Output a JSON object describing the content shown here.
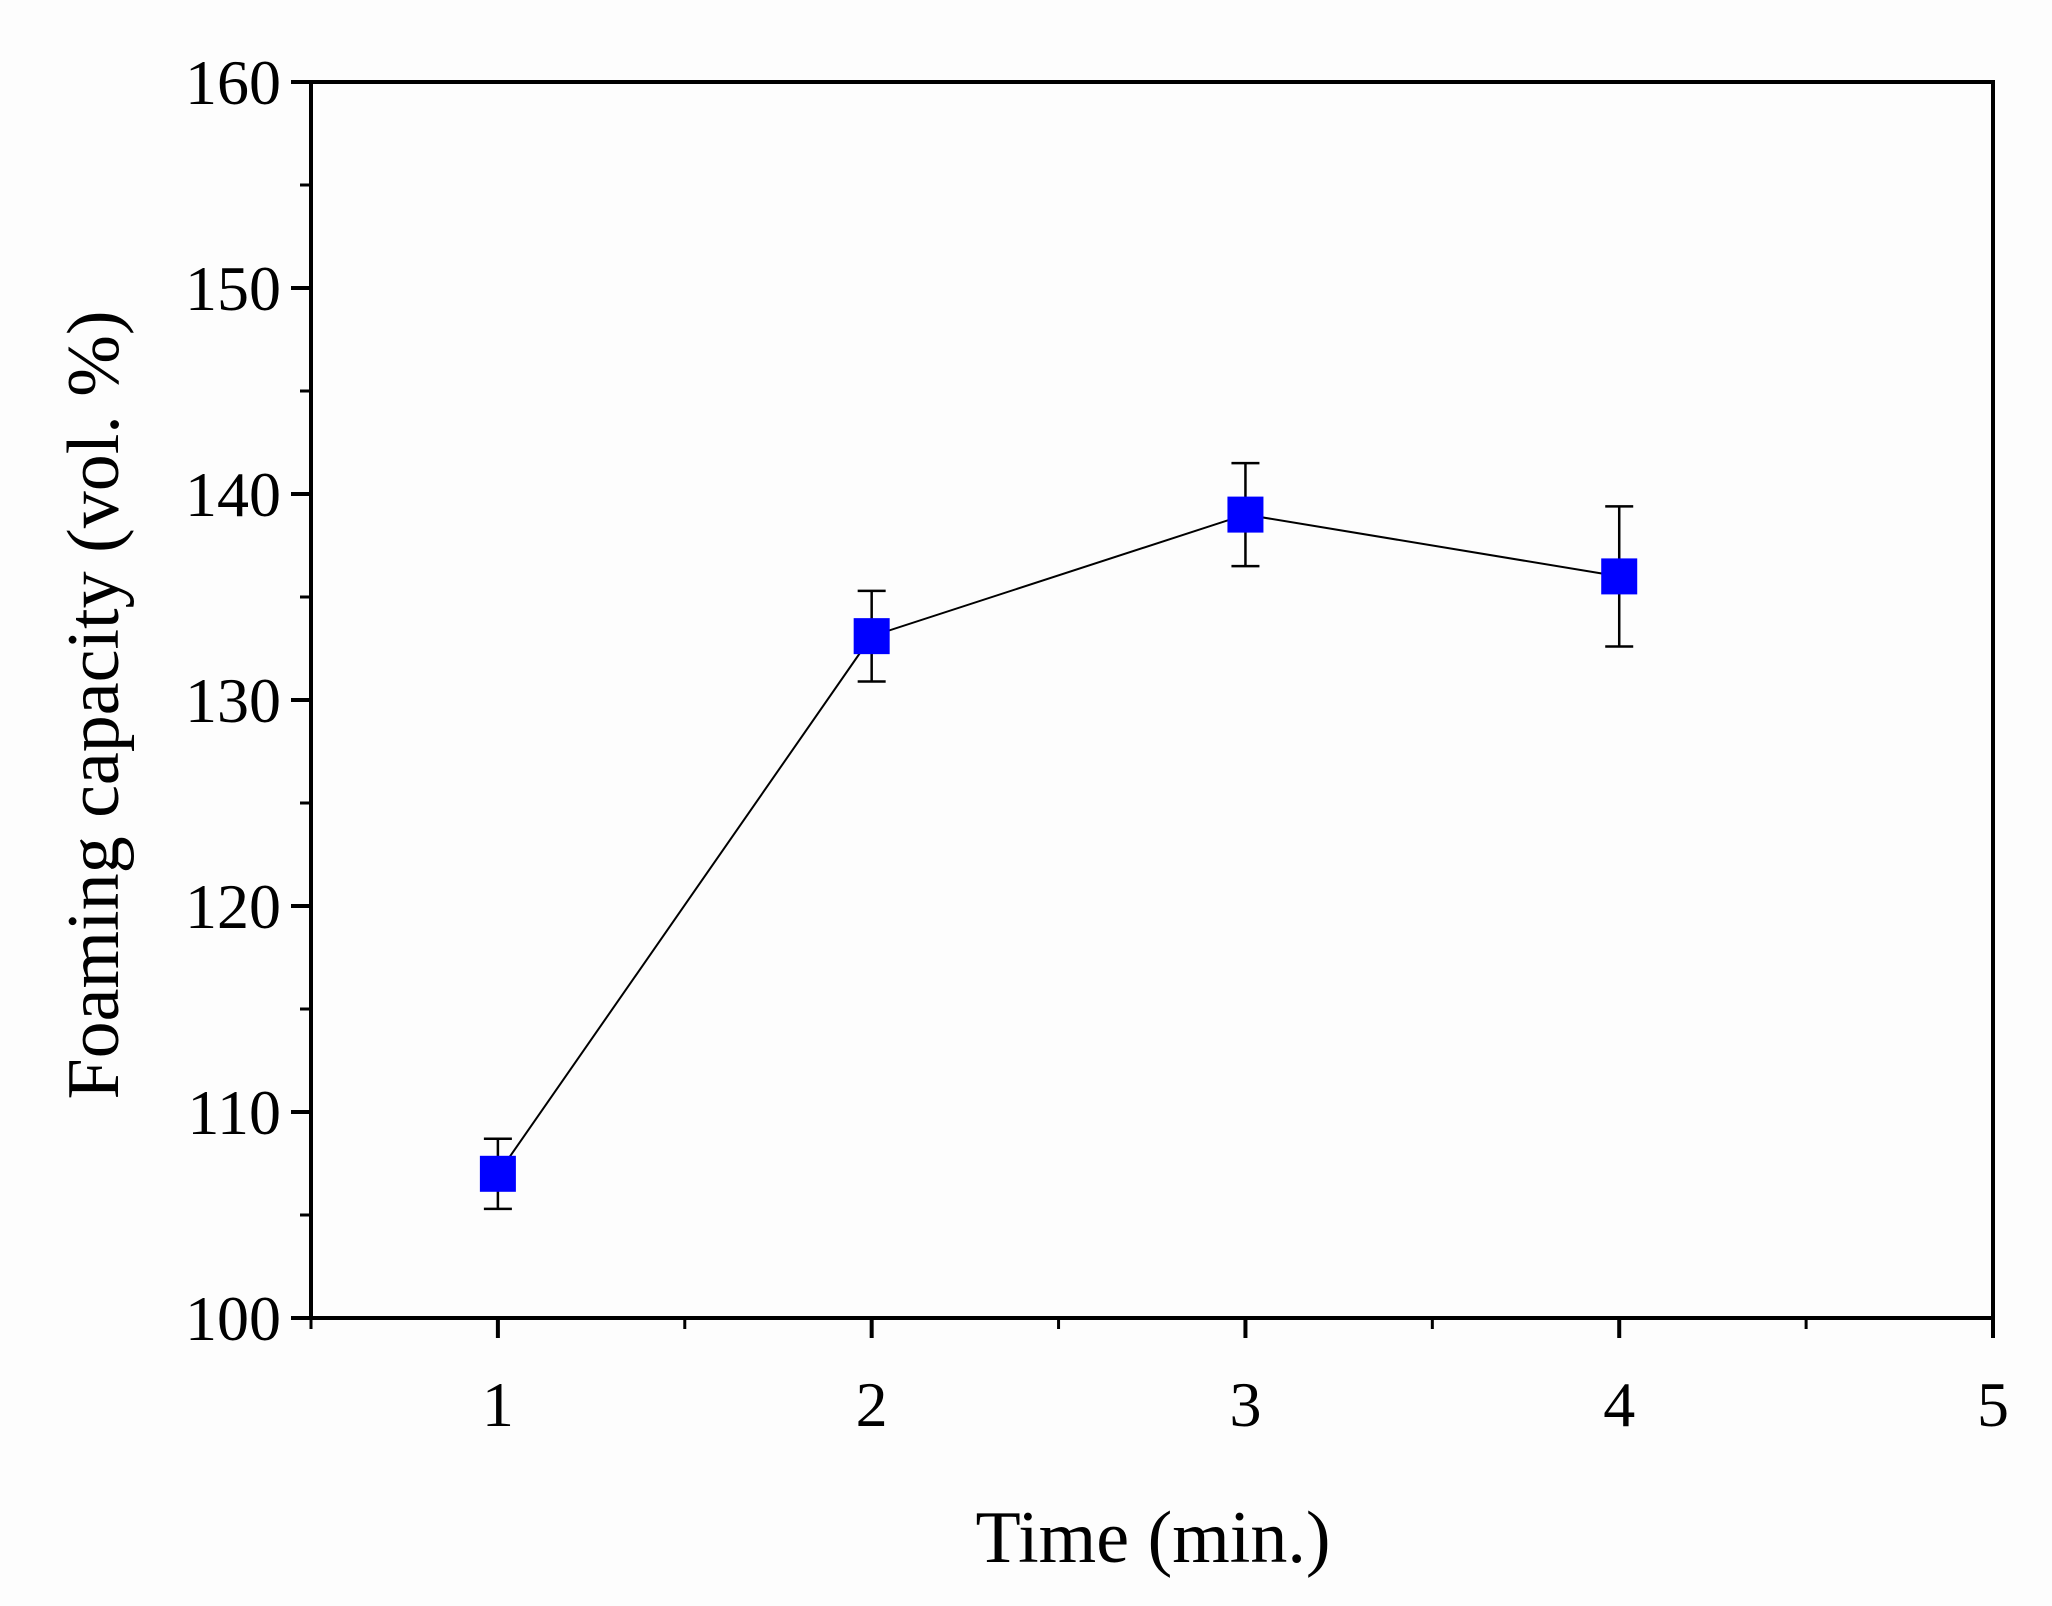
{
  "chart_data": {
    "type": "scatter",
    "title": "",
    "xlabel": "Time (min.)",
    "ylabel": "Foaming capacity (vol. %)",
    "xlim": [
      0.5,
      5
    ],
    "ylim": [
      100,
      160
    ],
    "xticks": [
      1,
      2,
      3,
      4,
      5
    ],
    "yticks": [
      100,
      110,
      120,
      130,
      140,
      150,
      160
    ],
    "grid": false,
    "legend": "none",
    "series": [
      {
        "marker": "square",
        "color": "#0000ff",
        "line_color": "#000000",
        "connected": true,
        "x": [
          1,
          2,
          3,
          4
        ],
        "y": [
          107.0,
          133.1,
          139.0,
          136.0
        ],
        "error": [
          1.7,
          2.2,
          2.5,
          3.4
        ]
      }
    ]
  }
}
